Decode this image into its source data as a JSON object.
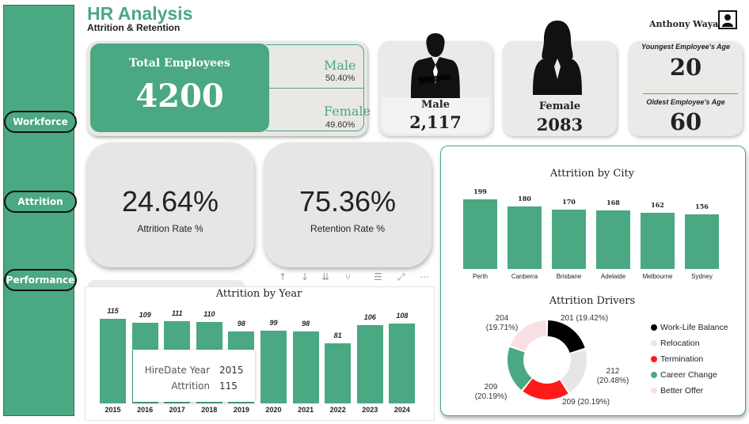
{
  "header": {
    "title": "HR Analysis",
    "subtitle": "Attrition & Retention",
    "user_name": "Anthony Wayas"
  },
  "sidebar": {
    "items": [
      {
        "label": "Workforce"
      },
      {
        "label": "Attrition"
      },
      {
        "label": "Performance"
      }
    ]
  },
  "kpi": {
    "total_label": "Total Employees",
    "total_value": "4200",
    "male_label": "Male",
    "male_pct": "50.40%",
    "female_label": "Female",
    "female_pct": "49.60%"
  },
  "gender_cards": {
    "male_label": "Male",
    "male_value": "2,117",
    "female_label": "Female",
    "female_value": "2083"
  },
  "age_card": {
    "youngest_label": "Youngest Employee's Age",
    "youngest_value": "20",
    "oldest_label": "Oldest Employee's Age",
    "oldest_value": "60"
  },
  "rates": {
    "attrition_value": "24.64%",
    "attrition_label": "Attrition Rate %",
    "retention_value": "75.36%",
    "retention_label": "Retention Rate %"
  },
  "colors": {
    "accent": "#4aa883",
    "work_life": "#000000",
    "relocation": "#e6e6e6",
    "termination": "#ff1a1a",
    "career": "#4aa883",
    "better_offer": "#f9e0e4"
  },
  "chart_data": [
    {
      "type": "bar",
      "title": "Attrition by Year",
      "categories": [
        "2015",
        "2016",
        "2017",
        "2018",
        "2019",
        "2020",
        "2021",
        "2022",
        "2023",
        "2024"
      ],
      "values": [
        115,
        109,
        111,
        110,
        98,
        99,
        98,
        81,
        106,
        108
      ],
      "ylim": [
        0,
        120
      ],
      "tooltip": {
        "label1": "HireDate Year",
        "value1": "2015",
        "label2": "Attrition",
        "value2": "115"
      }
    },
    {
      "type": "bar",
      "title": "Attrition by City",
      "categories": [
        "Perth",
        "Canberra",
        "Brisbane",
        "Adelaide",
        "Melbourne",
        "Sydney"
      ],
      "values": [
        199,
        180,
        170,
        168,
        162,
        156
      ],
      "ylim": [
        0,
        200
      ]
    },
    {
      "type": "pie",
      "title": "Attrition Drivers",
      "labels": [
        "Work-Life Balance",
        "Relocation",
        "Termination",
        "Career Change",
        "Better Offer"
      ],
      "values": [
        212,
        209,
        209,
        204,
        201
      ],
      "percents": [
        "20.48%",
        "20.19%",
        "20.19%",
        "19.71%",
        "19.42%"
      ],
      "legend": "right"
    }
  ]
}
